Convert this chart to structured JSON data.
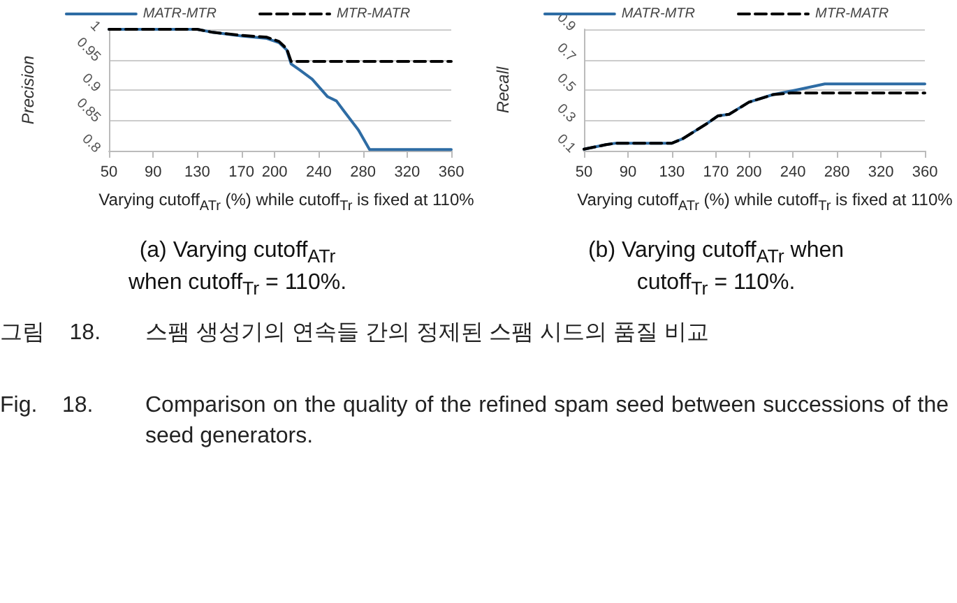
{
  "chart_data": [
    {
      "type": "line",
      "ylabel": "Precision",
      "xlabel": "Varying cutoff$_{ATr}$ (%) while cutoff$_{Tr}$ is fixed at 110%",
      "legend": "top",
      "grid": "y",
      "marker": "none",
      "xlim": [
        50,
        360
      ],
      "xticks": [
        50,
        90,
        130,
        170,
        200,
        240,
        280,
        320,
        360
      ],
      "ylim": [
        0.8,
        1
      ],
      "yticks": [
        0.8,
        0.85,
        0.9,
        0.95,
        1
      ],
      "series": [
        {
          "name": "MATR-MTR",
          "color": "#2e6ca4",
          "line_style": "solid",
          "x": [
            50,
            130,
            144,
            170,
            193,
            204,
            211,
            215,
            222,
            234,
            248,
            256,
            263,
            276,
            286,
            360
          ],
          "values": [
            1,
            1,
            0.995,
            0.989,
            0.985,
            0.978,
            0.966,
            0.943,
            0.934,
            0.918,
            0.889,
            0.882,
            0.865,
            0.834,
            0.802,
            0.802
          ]
        },
        {
          "name": "MTR-MATR",
          "color": "#000000",
          "line_style": "dashed",
          "x": [
            50,
            130,
            144,
            170,
            193,
            204,
            211,
            215,
            360
          ],
          "values": [
            1,
            1,
            0.995,
            0.99,
            0.987,
            0.98,
            0.968,
            0.947,
            0.947
          ]
        }
      ],
      "annotations": [
        "(a) Varying cutoff$_{ATr}$ when cutoff$_{Tr}$ = 110%."
      ]
    },
    {
      "type": "line",
      "ylabel": "Recall",
      "xlabel": "Varying cutoff$_{ATr}$ (%) while cutoff$_{Tr}$ is fixed at 110%",
      "legend": "top",
      "grid": "y",
      "marker": "none",
      "xlim": [
        50,
        360
      ],
      "xticks": [
        50,
        90,
        130,
        170,
        200,
        240,
        280,
        320,
        360
      ],
      "ylim": [
        0.1,
        0.9
      ],
      "yticks": [
        0.1,
        0.3,
        0.5,
        0.7,
        0.9
      ],
      "series": [
        {
          "name": "MATR-MTR",
          "color": "#2e6ca4",
          "line_style": "solid",
          "x": [
            50,
            70,
            79,
            130,
            140,
            162,
            172,
            182,
            200,
            222,
            243,
            269,
            296,
            360
          ],
          "values": [
            0.11,
            0.14,
            0.15,
            0.15,
            0.18,
            0.28,
            0.33,
            0.34,
            0.42,
            0.47,
            0.5,
            0.54,
            0.54,
            0.54
          ]
        },
        {
          "name": "MTR-MATR",
          "color": "#000000",
          "line_style": "dashed",
          "x": [
            50,
            70,
            79,
            130,
            140,
            162,
            172,
            182,
            200,
            222,
            238,
            360
          ],
          "values": [
            0.11,
            0.14,
            0.15,
            0.15,
            0.18,
            0.28,
            0.33,
            0.34,
            0.42,
            0.47,
            0.48,
            0.48
          ]
        }
      ],
      "annotations": [
        "(b) Varying cutoff$_{ATr}$ when cutoff$_{Tr}$ = 110%.",
        "그림 18. 스팸 생성기의 연속들 간의 정제된 스팸 시드의 품질 비교",
        "Fig. 18. Comparison on the quality of the refined spam seed between successions of the seed generators."
      ]
    }
  ]
}
